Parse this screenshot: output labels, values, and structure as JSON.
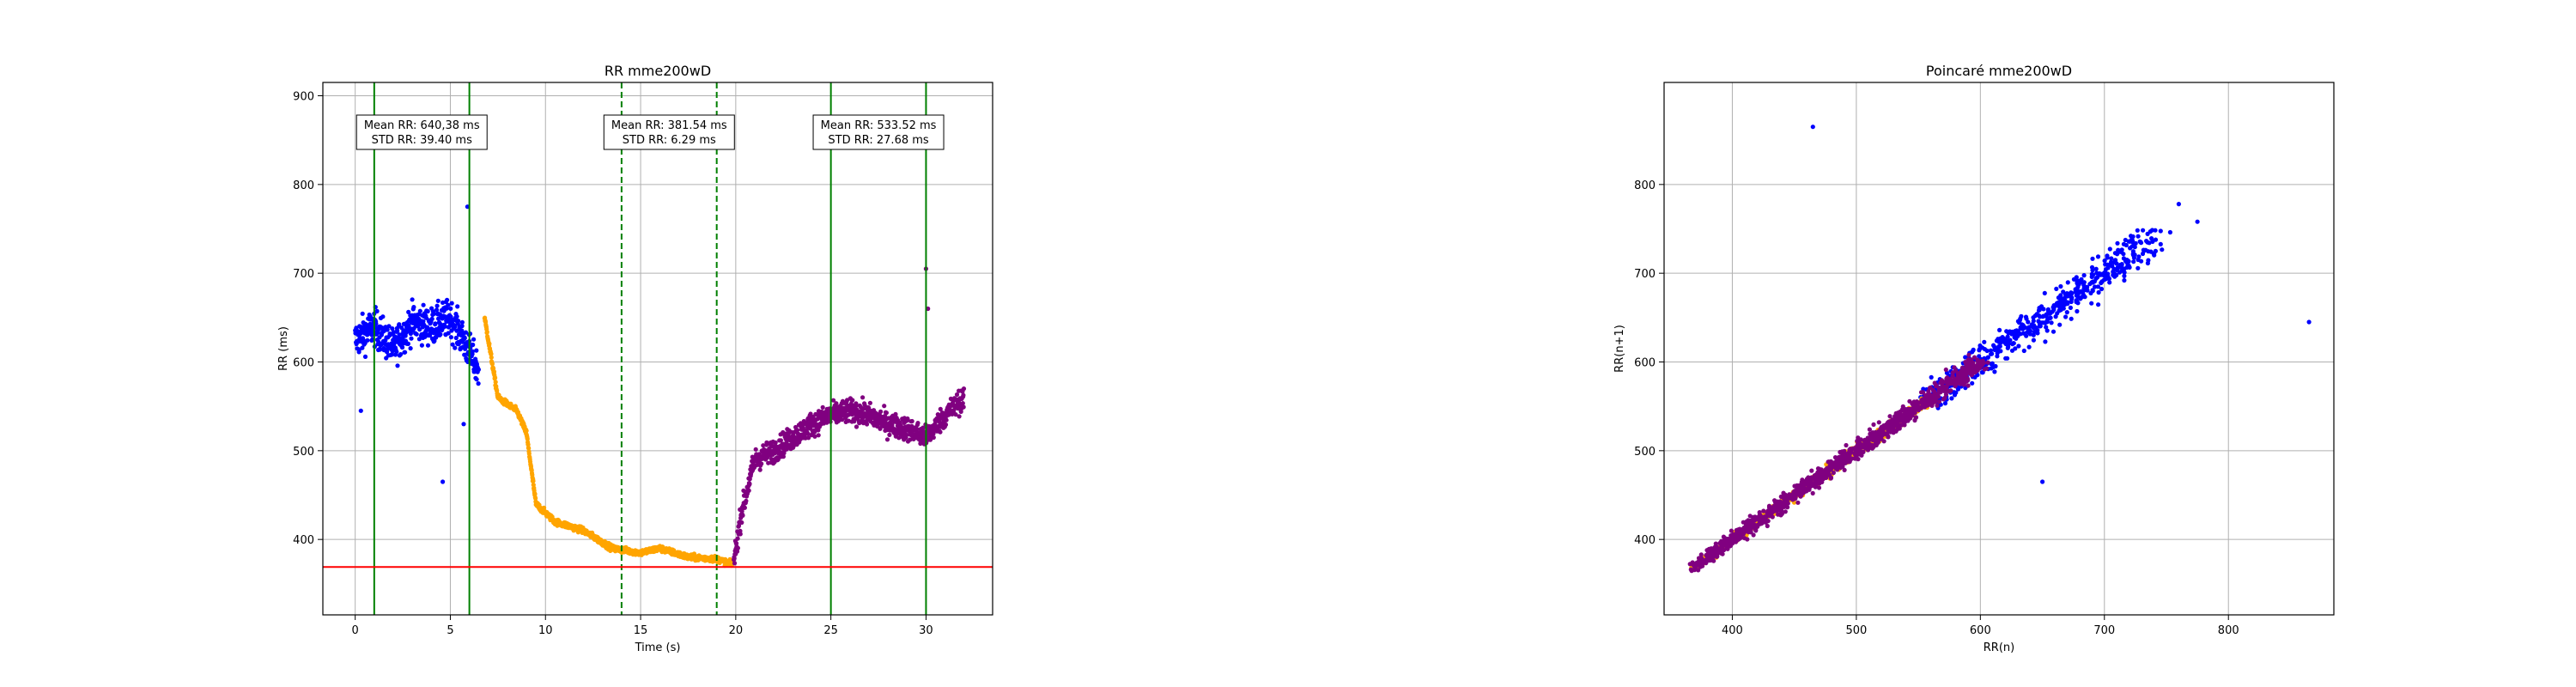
{
  "chart_data": [
    {
      "type": "scatter",
      "title": "RR mme200wD",
      "xlabel": "Time (s)",
      "ylabel": "RR (ms)",
      "xlim": [
        -1.7,
        33.5
      ],
      "ylim": [
        315,
        915
      ],
      "xticks": [
        0,
        5,
        10,
        15,
        20,
        25,
        30
      ],
      "yticks": [
        400,
        500,
        600,
        700,
        800,
        900
      ],
      "grid": true,
      "colors": {
        "baseline": "#0000ff",
        "exercise": "#ffa500",
        "recovery": "#800080",
        "window": "#008000",
        "threshold": "#ff0000"
      },
      "window_lines_solid": [
        1,
        6,
        25,
        30
      ],
      "window_lines_dashed": [
        14,
        19
      ],
      "threshold_line": 369,
      "annotations": [
        {
          "x": 3.5,
          "mean": "Mean RR: 640,38 ms",
          "std": "STD RR: 39.40 ms"
        },
        {
          "x": 16.5,
          "mean": "Mean RR: 381.54 ms",
          "std": "STD RR: 6.29 ms"
        },
        {
          "x": 27.5,
          "mean": "Mean RR: 533.52 ms",
          "std": "STD RR: 27.68 ms"
        }
      ],
      "series": [
        {
          "color": "#0000ff",
          "segments": [
            [
              0,
              625
            ],
            [
              1,
              640
            ],
            [
              2,
              615
            ],
            [
              3,
              645
            ],
            [
              4,
              640
            ],
            [
              5,
              650
            ],
            [
              5.8,
              620
            ],
            [
              6.5,
              590
            ]
          ],
          "spread": 38,
          "outliers": [
            [
              4.6,
              465
            ],
            [
              5.9,
              775
            ],
            [
              5.7,
              530
            ],
            [
              0.3,
              545
            ]
          ]
        },
        {
          "color": "#ffa500",
          "segments": [
            [
              6.8,
              650
            ],
            [
              7.5,
              560
            ],
            [
              8.5,
              545
            ],
            [
              9,
              520
            ],
            [
              9.5,
              440
            ],
            [
              10.5,
              420
            ],
            [
              12,
              410
            ],
            [
              13.5,
              390
            ],
            [
              15,
              385
            ],
            [
              16,
              390
            ],
            [
              17.5,
              380
            ],
            [
              19,
              378
            ],
            [
              19.8,
              372
            ]
          ],
          "spread": 6,
          "outliers": []
        },
        {
          "color": "#800080",
          "segments": [
            [
              19.9,
              375
            ],
            [
              20.3,
              430
            ],
            [
              21,
              490
            ],
            [
              22,
              500
            ],
            [
              23,
              515
            ],
            [
              24,
              530
            ],
            [
              25,
              540
            ],
            [
              26,
              545
            ],
            [
              27,
              540
            ],
            [
              28,
              530
            ],
            [
              29,
              525
            ],
            [
              30,
              515
            ],
            [
              31,
              540
            ],
            [
              32,
              560
            ]
          ],
          "spread": 24,
          "outliers": [
            [
              30,
              705
            ],
            [
              30.1,
              660
            ]
          ]
        }
      ]
    },
    {
      "type": "scatter",
      "title": "Poincaré mme200wD",
      "xlabel": "RR(n)",
      "ylabel": "RR(n+1)",
      "xlim": [
        345,
        885
      ],
      "ylim": [
        315,
        915
      ],
      "xticks": [
        400,
        500,
        600,
        700,
        800
      ],
      "yticks": [
        400,
        500,
        600,
        700,
        800
      ],
      "grid": true,
      "series": [
        {
          "color": "#0000ff",
          "range": [
            560,
            740
          ],
          "spread": 16,
          "outliers": [
            [
              465,
              865
            ],
            [
              865,
              645
            ],
            [
              650,
              465
            ],
            [
              775,
              758
            ],
            [
              760,
              778
            ]
          ]
        },
        {
          "color": "#ffa500",
          "range": [
            368,
            560
          ],
          "spread": 5,
          "outliers": []
        },
        {
          "color": "#800080",
          "range": [
            370,
            600
          ],
          "spread": 8,
          "outliers": []
        }
      ]
    }
  ]
}
